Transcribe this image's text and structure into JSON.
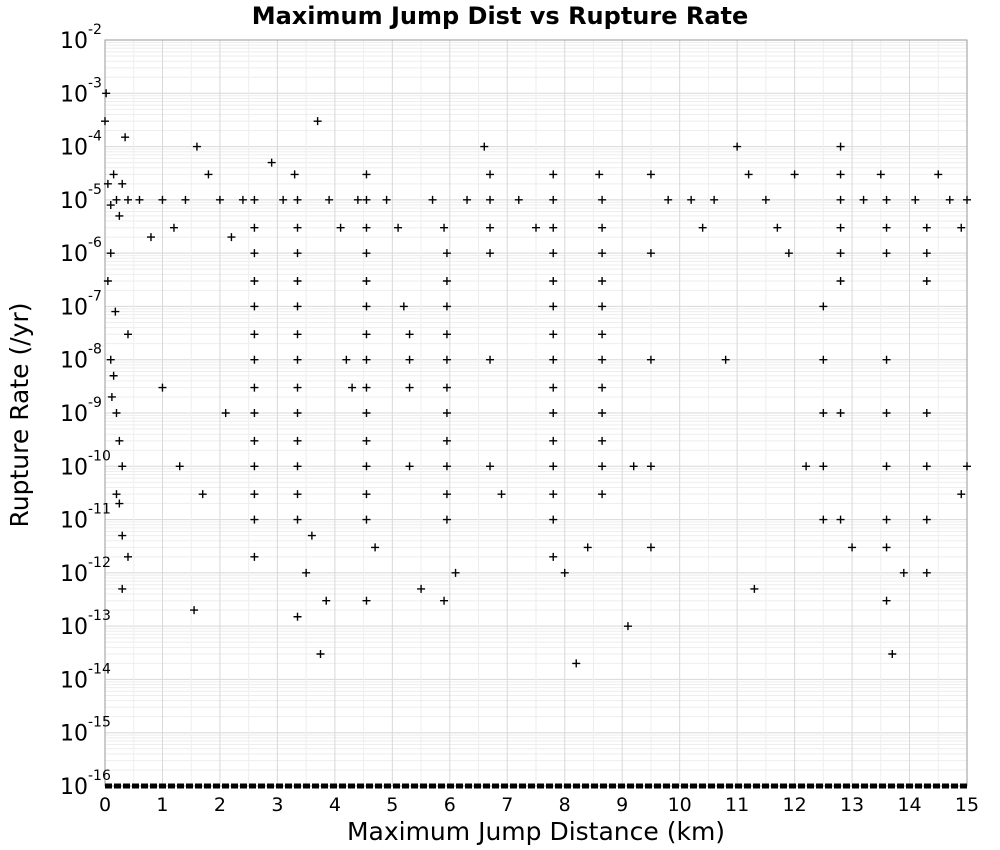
{
  "chart_data": {
    "type": "scatter",
    "title": "Maximum Jump Dist vs Rupture Rate",
    "xlabel": "Maximum Jump Distance (km)",
    "ylabel": "Rupture Rate (/yr)",
    "xlim": [
      0,
      15
    ],
    "ylim": [
      1e-16,
      0.01
    ],
    "yscale": "log",
    "grid": true,
    "marker": "+",
    "marker_color": "#000000",
    "x_ticks": [
      "0",
      "1",
      "2",
      "3",
      "4",
      "5",
      "6",
      "7",
      "8",
      "9",
      "10",
      "11",
      "12",
      "13",
      "14",
      "15"
    ],
    "y_ticks": [
      {
        "base": "10",
        "exp": "-2"
      },
      {
        "base": "10",
        "exp": "-3"
      },
      {
        "base": "10",
        "exp": "-4"
      },
      {
        "base": "10",
        "exp": "-5"
      },
      {
        "base": "10",
        "exp": "-6"
      },
      {
        "base": "10",
        "exp": "-7"
      },
      {
        "base": "10",
        "exp": "-8"
      },
      {
        "base": "10",
        "exp": "-9"
      },
      {
        "base": "10",
        "exp": "-10"
      },
      {
        "base": "10",
        "exp": "-11"
      },
      {
        "base": "10",
        "exp": "-12"
      },
      {
        "base": "10",
        "exp": "-13"
      },
      {
        "base": "10",
        "exp": "-14"
      },
      {
        "base": "10",
        "exp": "-15"
      },
      {
        "base": "10",
        "exp": "-16"
      }
    ],
    "points": [
      [
        0.0,
        0.0003
      ],
      [
        0.02,
        0.001
      ],
      [
        0.05,
        2e-05
      ],
      [
        0.1,
        8e-06
      ],
      [
        0.15,
        3e-05
      ],
      [
        0.2,
        1e-05
      ],
      [
        0.25,
        5e-06
      ],
      [
        0.3,
        2e-05
      ],
      [
        0.35,
        0.00015
      ],
      [
        0.4,
        1e-05
      ],
      [
        0.1,
        1e-08
      ],
      [
        0.15,
        5e-09
      ],
      [
        0.2,
        1e-09
      ],
      [
        0.25,
        3e-10
      ],
      [
        0.3,
        1e-10
      ],
      [
        0.2,
        3e-11
      ],
      [
        0.25,
        2e-11
      ],
      [
        0.3,
        5e-12
      ],
      [
        0.4,
        2e-12
      ],
      [
        0.1,
        1e-06
      ],
      [
        0.3,
        5e-13
      ],
      [
        0.05,
        3e-07
      ],
      [
        0.18,
        8e-08
      ],
      [
        0.4,
        3e-08
      ],
      [
        0.12,
        2e-09
      ],
      [
        0.6,
        1e-05
      ],
      [
        0.8,
        2e-06
      ],
      [
        1.0,
        1e-05
      ],
      [
        1.2,
        3e-06
      ],
      [
        1.4,
        1e-05
      ],
      [
        1.6,
        0.0001
      ],
      [
        1.8,
        3e-05
      ],
      [
        2.0,
        1e-05
      ],
      [
        2.2,
        2e-06
      ],
      [
        2.4,
        1e-05
      ],
      [
        1.55,
        2e-13
      ],
      [
        1.0,
        3e-09
      ],
      [
        1.3,
        1e-10
      ],
      [
        1.7,
        3e-11
      ],
      [
        2.1,
        1e-09
      ],
      [
        2.6,
        1e-05
      ],
      [
        2.6,
        3e-06
      ],
      [
        2.6,
        1e-06
      ],
      [
        2.6,
        3e-07
      ],
      [
        2.6,
        1e-07
      ],
      [
        2.6,
        3e-08
      ],
      [
        2.6,
        1e-08
      ],
      [
        2.6,
        3e-09
      ],
      [
        2.6,
        1e-09
      ],
      [
        2.6,
        3e-10
      ],
      [
        2.6,
        1e-10
      ],
      [
        2.6,
        3e-11
      ],
      [
        2.6,
        1e-11
      ],
      [
        2.6,
        2e-12
      ],
      [
        2.9,
        5e-05
      ],
      [
        3.1,
        1e-05
      ],
      [
        3.3,
        3e-05
      ],
      [
        3.35,
        1e-05
      ],
      [
        3.35,
        3e-06
      ],
      [
        3.35,
        1e-06
      ],
      [
        3.35,
        3e-07
      ],
      [
        3.35,
        1e-07
      ],
      [
        3.35,
        3e-08
      ],
      [
        3.35,
        1e-08
      ],
      [
        3.35,
        3e-09
      ],
      [
        3.35,
        1e-09
      ],
      [
        3.35,
        3e-10
      ],
      [
        3.35,
        1e-10
      ],
      [
        3.35,
        3e-11
      ],
      [
        3.35,
        1e-11
      ],
      [
        3.35,
        1.5e-13
      ],
      [
        3.7,
        0.0003
      ],
      [
        3.75,
        3e-14
      ],
      [
        3.85,
        3e-13
      ],
      [
        3.6,
        5e-12
      ],
      [
        3.5,
        1e-12
      ],
      [
        3.9,
        1e-05
      ],
      [
        4.1,
        3e-06
      ],
      [
        4.2,
        1e-08
      ],
      [
        4.3,
        3e-09
      ],
      [
        4.4,
        1e-05
      ],
      [
        4.55,
        3e-05
      ],
      [
        4.55,
        1e-05
      ],
      [
        4.55,
        3e-06
      ],
      [
        4.55,
        1e-06
      ],
      [
        4.55,
        3e-07
      ],
      [
        4.55,
        1e-07
      ],
      [
        4.55,
        3e-08
      ],
      [
        4.55,
        1e-08
      ],
      [
        4.55,
        3e-09
      ],
      [
        4.55,
        1e-09
      ],
      [
        4.55,
        3e-10
      ],
      [
        4.55,
        1e-10
      ],
      [
        4.55,
        3e-11
      ],
      [
        4.55,
        1e-11
      ],
      [
        4.55,
        3e-13
      ],
      [
        4.7,
        3e-12
      ],
      [
        4.9,
        1e-05
      ],
      [
        5.1,
        3e-06
      ],
      [
        5.2,
        1e-07
      ],
      [
        5.3,
        3e-08
      ],
      [
        5.3,
        1e-08
      ],
      [
        5.3,
        3e-09
      ],
      [
        5.3,
        1e-10
      ],
      [
        5.5,
        5e-13
      ],
      [
        5.7,
        1e-05
      ],
      [
        5.9,
        3e-06
      ],
      [
        5.95,
        1e-06
      ],
      [
        5.95,
        3e-07
      ],
      [
        5.95,
        1e-07
      ],
      [
        5.95,
        3e-08
      ],
      [
        5.95,
        1e-08
      ],
      [
        5.95,
        3e-09
      ],
      [
        5.95,
        1e-09
      ],
      [
        5.95,
        3e-10
      ],
      [
        5.95,
        1e-10
      ],
      [
        5.95,
        3e-11
      ],
      [
        5.95,
        1e-11
      ],
      [
        5.9,
        3e-13
      ],
      [
        6.1,
        1e-12
      ],
      [
        6.3,
        1e-05
      ],
      [
        6.6,
        0.0001
      ],
      [
        6.7,
        3e-05
      ],
      [
        6.7,
        1e-05
      ],
      [
        6.7,
        3e-06
      ],
      [
        6.7,
        1e-06
      ],
      [
        6.7,
        1e-08
      ],
      [
        6.7,
        1e-10
      ],
      [
        6.9,
        3e-11
      ],
      [
        7.2,
        1e-05
      ],
      [
        7.5,
        3e-06
      ],
      [
        7.8,
        3e-05
      ],
      [
        7.8,
        1e-05
      ],
      [
        7.8,
        3e-06
      ],
      [
        7.8,
        1e-06
      ],
      [
        7.8,
        3e-07
      ],
      [
        7.8,
        1e-07
      ],
      [
        7.8,
        3e-08
      ],
      [
        7.8,
        1e-08
      ],
      [
        7.8,
        3e-09
      ],
      [
        7.8,
        1e-09
      ],
      [
        7.8,
        3e-10
      ],
      [
        7.8,
        1e-10
      ],
      [
        7.8,
        3e-11
      ],
      [
        7.8,
        1e-11
      ],
      [
        7.8,
        2e-12
      ],
      [
        8.0,
        1e-12
      ],
      [
        8.2,
        2e-14
      ],
      [
        8.4,
        3e-12
      ],
      [
        8.6,
        3e-05
      ],
      [
        8.65,
        1e-05
      ],
      [
        8.65,
        3e-06
      ],
      [
        8.65,
        1e-06
      ],
      [
        8.65,
        3e-07
      ],
      [
        8.65,
        1e-07
      ],
      [
        8.65,
        3e-08
      ],
      [
        8.65,
        1e-08
      ],
      [
        8.65,
        3e-09
      ],
      [
        8.65,
        1e-09
      ],
      [
        8.65,
        3e-10
      ],
      [
        8.65,
        1e-10
      ],
      [
        8.65,
        3e-11
      ],
      [
        9.1,
        1e-13
      ],
      [
        9.2,
        1e-10
      ],
      [
        9.5,
        3e-05
      ],
      [
        9.5,
        1e-06
      ],
      [
        9.5,
        1e-08
      ],
      [
        9.5,
        1e-10
      ],
      [
        9.5,
        3e-12
      ],
      [
        9.8,
        1e-05
      ],
      [
        10.2,
        1e-05
      ],
      [
        10.4,
        3e-06
      ],
      [
        10.6,
        1e-05
      ],
      [
        10.8,
        1e-08
      ],
      [
        11.0,
        0.0001
      ],
      [
        11.2,
        3e-05
      ],
      [
        11.3,
        5e-13
      ],
      [
        11.5,
        1e-05
      ],
      [
        11.7,
        3e-06
      ],
      [
        11.9,
        1e-06
      ],
      [
        12.0,
        3e-05
      ],
      [
        12.2,
        1e-10
      ],
      [
        12.5,
        1e-07
      ],
      [
        12.5,
        1e-08
      ],
      [
        12.5,
        1e-09
      ],
      [
        12.5,
        1e-10
      ],
      [
        12.5,
        1e-11
      ],
      [
        12.8,
        0.0001
      ],
      [
        12.8,
        3e-05
      ],
      [
        12.8,
        1e-05
      ],
      [
        12.8,
        3e-06
      ],
      [
        12.8,
        1e-06
      ],
      [
        12.8,
        3e-07
      ],
      [
        12.8,
        1e-09
      ],
      [
        12.8,
        1e-11
      ],
      [
        13.0,
        3e-12
      ],
      [
        13.2,
        1e-05
      ],
      [
        13.5,
        3e-05
      ],
      [
        13.6,
        1e-05
      ],
      [
        13.6,
        3e-06
      ],
      [
        13.6,
        1e-06
      ],
      [
        13.6,
        1e-08
      ],
      [
        13.6,
        1e-09
      ],
      [
        13.6,
        1e-10
      ],
      [
        13.6,
        1e-11
      ],
      [
        13.6,
        3e-12
      ],
      [
        13.6,
        3e-13
      ],
      [
        13.7,
        3e-14
      ],
      [
        13.9,
        1e-12
      ],
      [
        14.1,
        1e-05
      ],
      [
        14.3,
        3e-06
      ],
      [
        14.3,
        1e-06
      ],
      [
        14.3,
        3e-07
      ],
      [
        14.3,
        1e-09
      ],
      [
        14.3,
        1e-10
      ],
      [
        14.3,
        1e-11
      ],
      [
        14.3,
        1e-12
      ],
      [
        14.5,
        3e-05
      ],
      [
        14.7,
        1e-05
      ],
      [
        14.9,
        3e-06
      ],
      [
        15.0,
        1e-05
      ],
      [
        15.0,
        1e-10
      ],
      [
        14.9,
        3e-11
      ]
    ],
    "floor_band": {
      "y": 1e-16,
      "x_range": [
        0,
        15
      ]
    }
  }
}
